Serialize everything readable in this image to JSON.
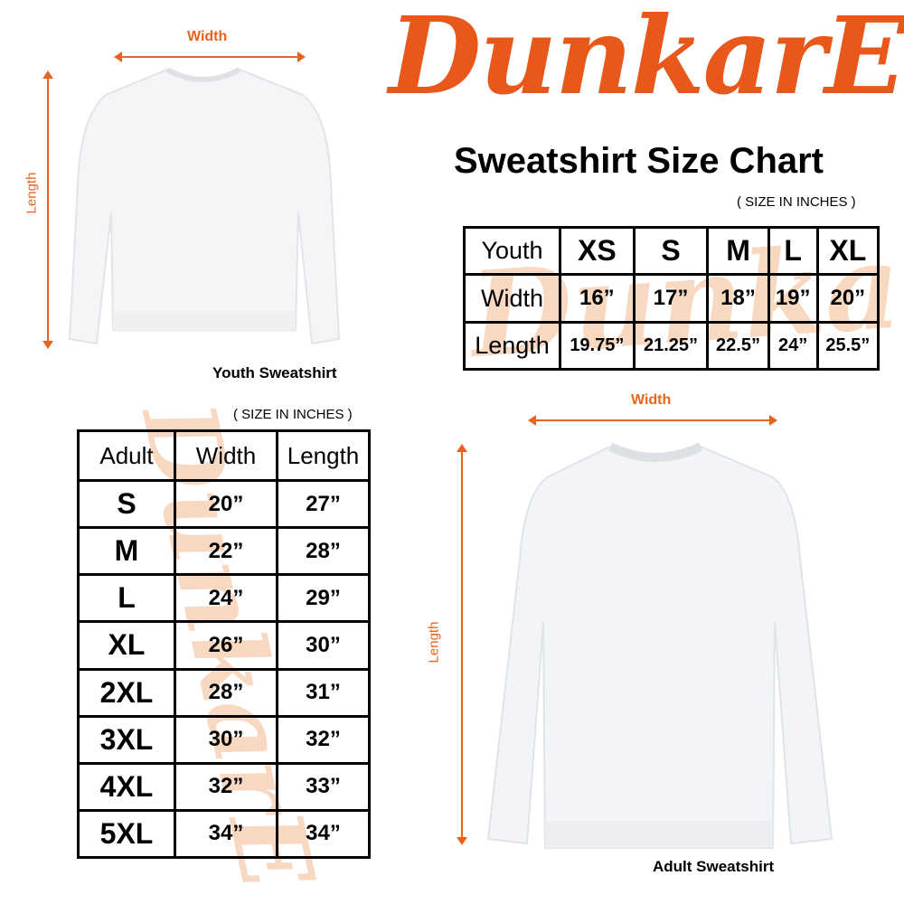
{
  "brand": {
    "logo_text": "DunkarE",
    "color": "#e8581a"
  },
  "title": "Sweatshirt Size Chart",
  "youth": {
    "width_label": "Width",
    "length_label": "Length",
    "caption": "Youth Sweatshirt",
    "unit_note": "( SIZE IN INCHES )",
    "table": {
      "header": [
        "Youth",
        "XS",
        "S",
        "M",
        "L",
        "XL"
      ],
      "rows": [
        [
          "Width",
          "16”",
          "17”",
          "18”",
          "19”",
          "20”"
        ],
        [
          "Length",
          "19.75”",
          "21.25”",
          "22.5”",
          "24”",
          "25.5”"
        ]
      ]
    }
  },
  "adult": {
    "width_label": "Width",
    "length_label": "Length",
    "caption": "Adult Sweatshirt",
    "unit_note": "( SIZE IN INCHES )",
    "table": {
      "header": [
        "Adult",
        "Width",
        "Length"
      ],
      "rows": [
        [
          "S",
          "20”",
          "27”"
        ],
        [
          "M",
          "22”",
          "28”"
        ],
        [
          "L",
          "24”",
          "29”"
        ],
        [
          "XL",
          "26”",
          "30”"
        ],
        [
          "2XL",
          "28”",
          "31”"
        ],
        [
          "3XL",
          "30”",
          "32”"
        ],
        [
          "4XL",
          "32”",
          "33”"
        ],
        [
          "5XL",
          "34”",
          "34”"
        ]
      ]
    }
  },
  "accent_color": "#e8641e"
}
